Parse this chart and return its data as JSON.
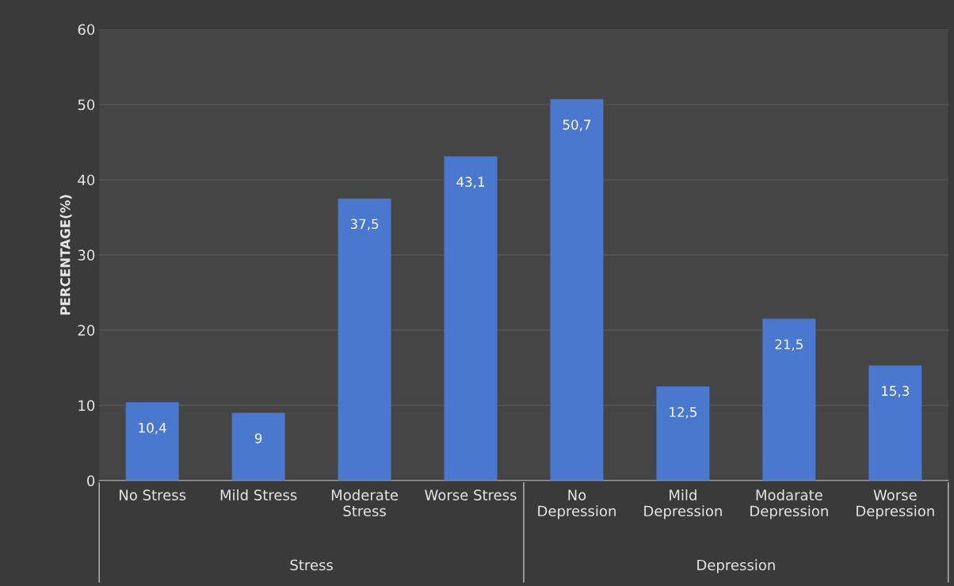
{
  "chart_data": {
    "type": "bar",
    "ylabel": "PERCENTAGE(%)",
    "categories": [
      "No Stress",
      "Mild Stress",
      "Moderate Stress",
      "Worse Stress",
      "No Depression",
      "Mild Depression",
      "Modarate Depression",
      "Worse Depression"
    ],
    "values": [
      10.4,
      9,
      37.5,
      43.1,
      50.7,
      12.5,
      21.5,
      15.3
    ],
    "value_labels": [
      "10,4",
      "9",
      "37,5",
      "43,1",
      "50,7",
      "12,5",
      "21,5",
      "15,3"
    ],
    "color": "#4a78cf",
    "ylim": [
      0,
      60
    ],
    "yticks": [
      0,
      10,
      20,
      30,
      40,
      50,
      60
    ],
    "grid": "y",
    "annotations": [
      "Stress",
      "Depression"
    ]
  }
}
